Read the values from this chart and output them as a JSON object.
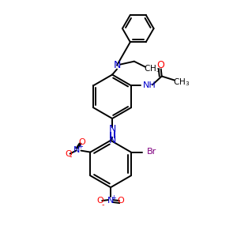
{
  "bg_color": "#ffffff",
  "bond_color": "#000000",
  "atom_colors": {
    "N": "#0000cc",
    "O": "#ff0000",
    "Br": "#800080",
    "C": "#000000"
  },
  "figsize": [
    3.0,
    3.0
  ],
  "dpi": 100
}
